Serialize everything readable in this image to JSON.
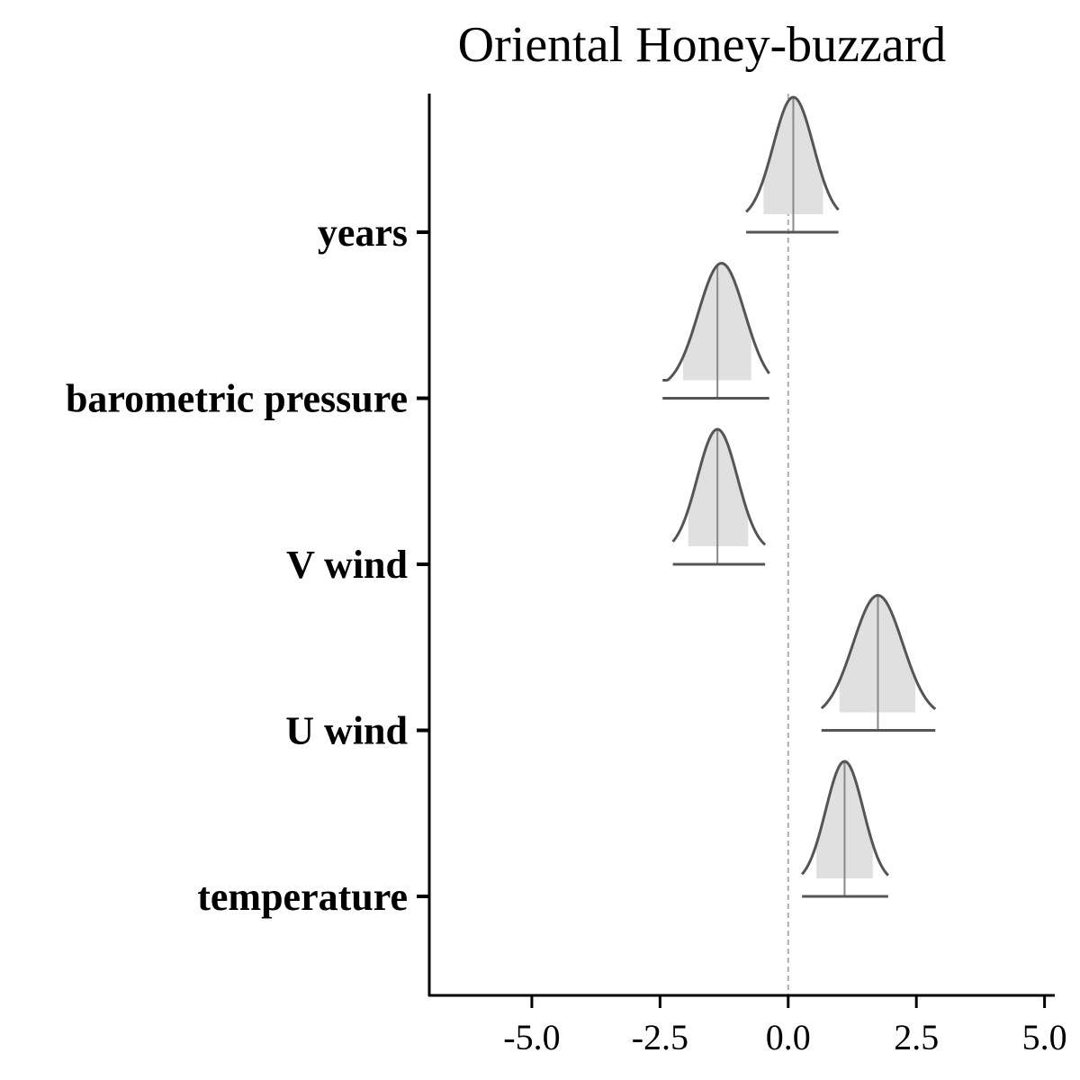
{
  "chart_data": {
    "type": "ridgeline",
    "title": "Oriental Honey-buzzard",
    "xlabel": "",
    "ylabel": "",
    "xlim": [
      -7.0,
      5.2
    ],
    "x_ticks": [
      -5.0,
      -2.5,
      0.0,
      2.5,
      5.0
    ],
    "x_tick_labels": [
      "-5.0",
      "-2.5",
      "0.0",
      "2.5",
      "5.0"
    ],
    "reference_line": 0.0,
    "grid": false,
    "legend": "none",
    "categories": [
      "years",
      "barometric pressure",
      "V wind",
      "U wind",
      "temperature"
    ],
    "series": [
      {
        "name": "years",
        "median": 0.1,
        "ci_inner": [
          -0.48,
          0.68
        ],
        "ci_outer": [
          -0.82,
          0.98
        ],
        "density_range": [
          -0.82,
          0.98
        ],
        "peak": 0.1
      },
      {
        "name": "barometric pressure",
        "median": -1.38,
        "ci_inner": [
          -2.05,
          -0.72
        ],
        "ci_outer": [
          -2.45,
          -0.37
        ],
        "density_range": [
          -2.45,
          -0.37
        ],
        "peak": -1.3
      },
      {
        "name": "V wind",
        "median": -1.38,
        "ci_inner": [
          -1.95,
          -0.78
        ],
        "ci_outer": [
          -2.25,
          -0.45
        ],
        "density_range": [
          -2.25,
          -0.45
        ],
        "peak": -1.38
      },
      {
        "name": "U wind",
        "median": 1.75,
        "ci_inner": [
          1.0,
          2.48
        ],
        "ci_outer": [
          0.65,
          2.87
        ],
        "density_range": [
          0.65,
          2.87
        ],
        "peak": 1.75
      },
      {
        "name": "temperature",
        "median": 1.1,
        "ci_inner": [
          0.55,
          1.65
        ],
        "ci_outer": [
          0.27,
          1.95
        ],
        "density_range": [
          0.27,
          1.95
        ],
        "peak": 1.1
      }
    ]
  },
  "colors": {
    "density_fill": "#e0e0e0",
    "density_line": "#555555",
    "median_line": "#888888",
    "interval_line": "#555555",
    "reference_line": "#b0b0b0",
    "axis": "#000000"
  }
}
